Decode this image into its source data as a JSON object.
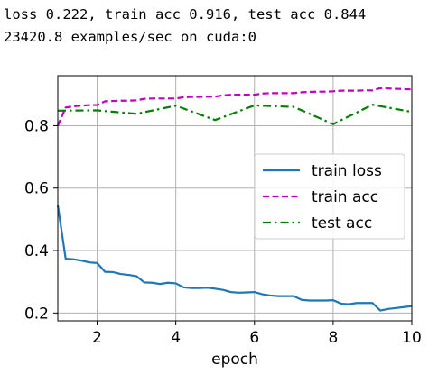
{
  "log": {
    "line1": "loss 0.222, train acc 0.916, test acc 0.844",
    "line2": "23420.8 examples/sec on cuda:0"
  },
  "chart_data": {
    "type": "line",
    "title": "",
    "xlabel": "epoch",
    "ylabel": "",
    "xlim": [
      1,
      10
    ],
    "ylim": [
      0.175,
      0.96
    ],
    "xticks": [
      2,
      4,
      6,
      8,
      10
    ],
    "yticks": [
      0.2,
      0.4,
      0.6,
      0.8
    ],
    "grid": true,
    "legend_position": "center-right",
    "series": [
      {
        "name": "train loss",
        "color": "#1f77b4",
        "style": "solid",
        "x": [
          1.0,
          1.2,
          1.4,
          1.6,
          1.8,
          2.0,
          2.2,
          2.4,
          2.6,
          2.8,
          3.0,
          3.2,
          3.4,
          3.6,
          3.8,
          4.0,
          4.2,
          4.4,
          4.6,
          4.8,
          5.0,
          5.2,
          5.4,
          5.6,
          5.8,
          6.0,
          6.2,
          6.4,
          6.6,
          6.8,
          7.0,
          7.2,
          7.4,
          7.6,
          7.8,
          8.0,
          8.2,
          8.4,
          8.6,
          8.8,
          9.0,
          9.2,
          9.4,
          9.6,
          9.8,
          10.0
        ],
        "y": [
          0.545,
          0.374,
          0.372,
          0.368,
          0.362,
          0.36,
          0.332,
          0.331,
          0.325,
          0.322,
          0.318,
          0.298,
          0.297,
          0.293,
          0.297,
          0.295,
          0.282,
          0.28,
          0.28,
          0.281,
          0.278,
          0.274,
          0.267,
          0.265,
          0.266,
          0.267,
          0.26,
          0.256,
          0.254,
          0.254,
          0.254,
          0.242,
          0.24,
          0.24,
          0.24,
          0.241,
          0.23,
          0.228,
          0.232,
          0.232,
          0.232,
          0.208,
          0.213,
          0.216,
          0.219,
          0.222
        ]
      },
      {
        "name": "train acc",
        "color": "#bf00bf",
        "style": "dashed",
        "x": [
          1.0,
          1.2,
          1.4,
          1.6,
          1.8,
          2.0,
          2.2,
          2.4,
          2.6,
          2.8,
          3.0,
          3.2,
          3.4,
          3.6,
          3.8,
          4.0,
          4.2,
          4.4,
          4.6,
          4.8,
          5.0,
          5.2,
          5.4,
          5.6,
          5.8,
          6.0,
          6.2,
          6.4,
          6.6,
          6.8,
          7.0,
          7.2,
          7.4,
          7.6,
          7.8,
          8.0,
          8.2,
          8.4,
          8.6,
          8.8,
          9.0,
          9.2,
          9.4,
          9.6,
          9.8,
          10.0
        ],
        "y": [
          0.8,
          0.858,
          0.862,
          0.864,
          0.866,
          0.866,
          0.878,
          0.879,
          0.88,
          0.88,
          0.881,
          0.886,
          0.887,
          0.887,
          0.887,
          0.887,
          0.891,
          0.892,
          0.892,
          0.893,
          0.893,
          0.897,
          0.899,
          0.899,
          0.899,
          0.899,
          0.903,
          0.904,
          0.904,
          0.904,
          0.904,
          0.907,
          0.908,
          0.909,
          0.909,
          0.91,
          0.912,
          0.912,
          0.912,
          0.913,
          0.913,
          0.92,
          0.919,
          0.918,
          0.917,
          0.916
        ]
      },
      {
        "name": "test acc",
        "color": "#008000",
        "style": "dashdot",
        "x": [
          1,
          2,
          3,
          4,
          5,
          6,
          7,
          8,
          9,
          10
        ],
        "y": [
          0.848,
          0.849,
          0.838,
          0.864,
          0.818,
          0.865,
          0.86,
          0.805,
          0.867,
          0.844
        ]
      }
    ]
  }
}
